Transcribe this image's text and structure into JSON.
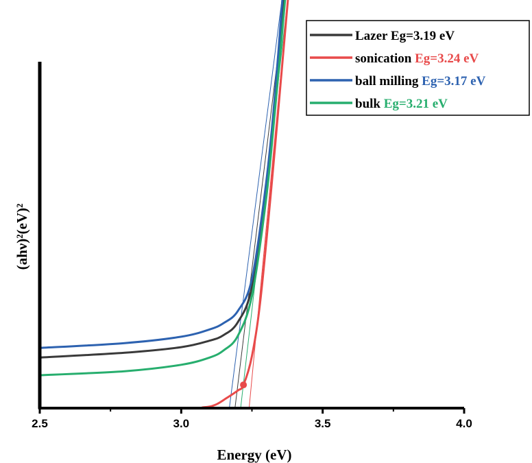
{
  "chart_data": {
    "type": "line",
    "title": "",
    "xlabel": "Energy (eV)",
    "ylabel": "(ahν)²(eV)²",
    "xlim": [
      2.5,
      4.0
    ],
    "ylim": [
      0,
      100
    ],
    "x_ticks": [
      "2.5",
      "3.0",
      "3.5",
      "4.0"
    ],
    "grid": false,
    "legend_position": "top-right",
    "colors": {
      "lazer": "#3a3a3a",
      "sonication": "#e84a4a",
      "ball_milling": "#2d62b0",
      "bulk": "#27ae6e"
    },
    "legend": [
      {
        "name": "Lazer",
        "eg": "Eg=3.19 eV",
        "name_color": "#000000",
        "eg_color": "#000000",
        "line_color": "#3a3a3a"
      },
      {
        "name": "sonication",
        "eg": "Eg=3.24 eV",
        "name_color": "#000000",
        "eg_color": "#e84a4a",
        "line_color": "#e84a4a"
      },
      {
        "name": "ball milling",
        "eg": "Eg=3.17 eV",
        "name_color": "#000000",
        "eg_color": "#2d62b0",
        "line_color": "#2d62b0"
      },
      {
        "name": "bulk",
        "eg": "Eg=3.21 eV",
        "name_color": "#000000",
        "eg_color": "#27ae6e",
        "line_color": "#27ae6e"
      }
    ],
    "series": [
      {
        "name": "Lazer",
        "color": "#3a3a3a",
        "x": [
          2.5,
          2.8,
          3.0,
          3.1,
          3.15,
          3.2,
          3.25,
          3.3,
          3.33,
          3.36,
          3.37
        ],
        "y": [
          12.6,
          13.8,
          15.2,
          16.8,
          18.2,
          21.4,
          30.2,
          55.0,
          75.0,
          101.0,
          104.0
        ]
      },
      {
        "name": "sonication",
        "color": "#e84a4a",
        "x": [
          2.5,
          3.0,
          3.08,
          3.12,
          3.16,
          3.2,
          3.22,
          3.25,
          3.28,
          3.32,
          3.36,
          3.38
        ],
        "y": [
          0.0,
          0.0,
          0.2,
          0.8,
          2.5,
          4.4,
          5.8,
          13.0,
          27.0,
          56.0,
          88.0,
          104.0
        ]
      },
      {
        "name": "ball milling",
        "color": "#2d62b0",
        "x": [
          2.5,
          2.8,
          3.0,
          3.1,
          3.15,
          3.2,
          3.25,
          3.3,
          3.33,
          3.36
        ],
        "y": [
          15.0,
          16.2,
          17.8,
          19.6,
          21.2,
          24.2,
          32.2,
          56.0,
          77.0,
          104.0
        ]
      },
      {
        "name": "bulk",
        "color": "#27ae6e",
        "x": [
          2.5,
          2.8,
          3.0,
          3.1,
          3.15,
          3.2,
          3.25,
          3.3,
          3.33,
          3.37
        ],
        "y": [
          8.2,
          9.2,
          10.8,
          12.6,
          14.4,
          18.0,
          28.0,
          52.0,
          73.0,
          104.0
        ]
      }
    ],
    "tangent_lines": [
      {
        "color": "#2d62b0",
        "x": [
          3.17,
          3.36
        ],
        "y": [
          0,
          104
        ]
      },
      {
        "color": "#3a3a3a",
        "x": [
          3.19,
          3.37
        ],
        "y": [
          0,
          104
        ]
      },
      {
        "color": "#27ae6e",
        "x": [
          3.21,
          3.38
        ],
        "y": [
          0,
          104
        ]
      },
      {
        "color": "#e84a4a",
        "x": [
          3.24,
          3.38
        ],
        "y": [
          0,
          104
        ]
      }
    ],
    "marker": {
      "x": 3.22,
      "y": 5.8,
      "color": "#e84a4a"
    }
  }
}
